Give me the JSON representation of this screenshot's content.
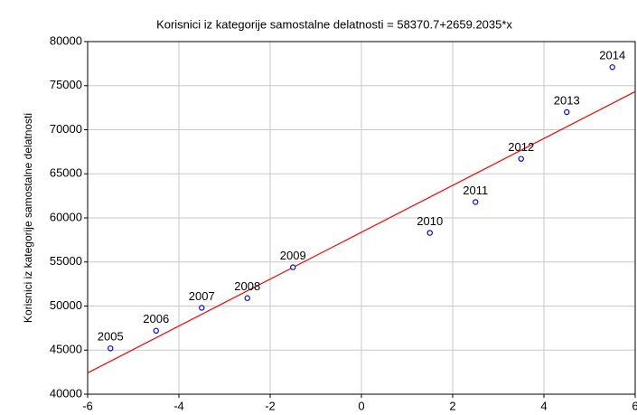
{
  "chart_data": {
    "type": "scatter",
    "title": "Korisnici iz kategorije samostalne delatnosti = 58370.7+2659.2035*x",
    "ylabel": "Korisnici iz kategorije samostalne delatnosti",
    "x": [
      -5.5,
      -4.5,
      -3.5,
      -2.5,
      -1.5,
      1.5,
      2.5,
      3.5,
      4.5,
      5.5
    ],
    "labels": [
      "2005",
      "2006",
      "2007",
      "2008",
      "2009",
      "2010",
      "2011",
      "2012",
      "2013",
      "2014"
    ],
    "values": [
      45200,
      47200,
      49800,
      50900,
      54400,
      58300,
      61800,
      66700,
      72000,
      77100
    ],
    "color": "#0000ff",
    "fit": {
      "intercept": 58370.7,
      "slope": 2659.2035,
      "color": "#ff0000"
    },
    "xlim": [
      -6,
      6
    ],
    "xticks": [
      -6,
      -4,
      -2,
      0,
      2,
      4,
      6
    ],
    "ylim": [
      40000,
      80000
    ],
    "yticks": [
      40000,
      45000,
      50000,
      55000,
      60000,
      65000,
      70000,
      75000,
      80000
    ],
    "grid": true
  }
}
